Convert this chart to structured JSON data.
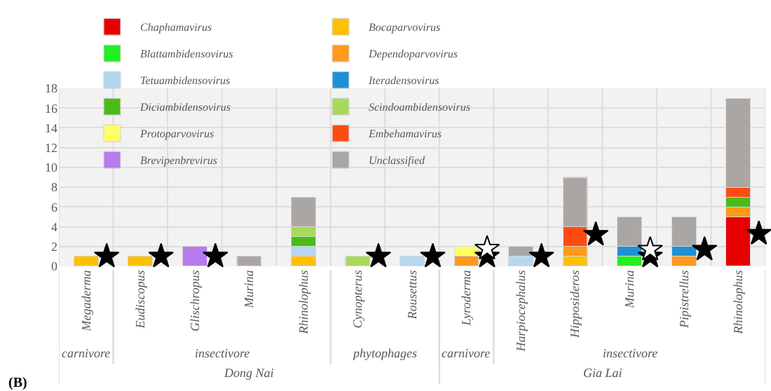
{
  "chart_data": {
    "type": "bar",
    "stacked": true,
    "grid": true,
    "legend": "top",
    "categories": [
      "Megaderma",
      "Eudiscopus",
      "Glischropus",
      "Murina",
      "Rhinolophus",
      "Cynopterus",
      "Rousettus",
      "Lyroderma",
      "Harpiocephalus",
      "Hipposideros",
      "Murina",
      "Pipistrellus",
      "Rhinolophus"
    ],
    "ylim": [
      0,
      18
    ],
    "yticks": [
      0,
      2,
      4,
      6,
      8,
      10,
      12,
      14,
      16,
      18
    ],
    "series": [
      {
        "name": "Chaphamavirus",
        "color": "#e60000",
        "values": [
          null,
          null,
          null,
          null,
          null,
          null,
          null,
          null,
          null,
          null,
          null,
          null,
          5
        ]
      },
      {
        "name": "Bocaparvovirus",
        "color": "#ffc000",
        "values": [
          1,
          1,
          null,
          null,
          1,
          null,
          null,
          null,
          null,
          1,
          null,
          null,
          null
        ]
      },
      {
        "name": "Blattambidensovirus",
        "color": "#22ee22",
        "values": [
          null,
          null,
          null,
          null,
          null,
          null,
          null,
          null,
          null,
          null,
          1,
          null,
          null
        ]
      },
      {
        "name": "Dependoparvovirus",
        "color": "#ff9a1a",
        "values": [
          null,
          null,
          null,
          null,
          null,
          null,
          null,
          1,
          null,
          1,
          null,
          1,
          1
        ]
      },
      {
        "name": "Tetuambidensovirus",
        "color": "#b4d7f0",
        "values": [
          null,
          null,
          null,
          null,
          1,
          null,
          1,
          null,
          1,
          null,
          null,
          null,
          null
        ]
      },
      {
        "name": "Iteradensovirus",
        "color": "#1e90d6",
        "values": [
          null,
          null,
          null,
          null,
          null,
          null,
          null,
          null,
          null,
          null,
          1,
          1,
          null
        ]
      },
      {
        "name": "Diciambidensovirus",
        "color": "#4cbb17",
        "values": [
          null,
          null,
          null,
          null,
          1,
          null,
          null,
          null,
          null,
          null,
          null,
          null,
          1
        ]
      },
      {
        "name": "Scindoambidensovirus",
        "color": "#a9d95a",
        "values": [
          null,
          null,
          null,
          null,
          1,
          1,
          null,
          null,
          null,
          null,
          null,
          null,
          null
        ]
      },
      {
        "name": "Protoparvovirus",
        "color": "#ffff66",
        "values": [
          null,
          null,
          null,
          null,
          null,
          null,
          null,
          1,
          null,
          null,
          null,
          null,
          null
        ]
      },
      {
        "name": "Embehamavirus",
        "color": "#ff4b12",
        "values": [
          null,
          null,
          null,
          null,
          null,
          null,
          null,
          null,
          null,
          2,
          null,
          null,
          1
        ]
      },
      {
        "name": "Brevipenbrevirus",
        "color": "#b77aef",
        "values": [
          null,
          null,
          2,
          null,
          null,
          null,
          null,
          null,
          null,
          null,
          null,
          null,
          null
        ]
      },
      {
        "name": "Unclassified",
        "color": "#aaa6a4",
        "values": [
          null,
          null,
          null,
          1,
          3,
          null,
          null,
          null,
          1,
          5,
          3,
          3,
          9
        ]
      },
      {
        "type": "scatter",
        "marker": "star",
        "color": "#000000",
        "values": [
          1,
          1,
          1,
          null,
          null,
          1,
          1,
          1,
          1,
          3.2,
          1,
          1.7,
          3.3
        ]
      },
      {
        "type": "scatter",
        "marker": "star",
        "color": "#ffffff",
        "values": [
          null,
          null,
          null,
          null,
          null,
          null,
          null,
          1.8,
          null,
          null,
          1.7,
          null,
          null
        ]
      }
    ],
    "annotations": [
      "carnivore",
      "insectivore",
      "phytophages",
      "carnivore",
      "insectivore",
      "Dong Nai",
      "Gia Lai",
      "(B)"
    ]
  }
}
